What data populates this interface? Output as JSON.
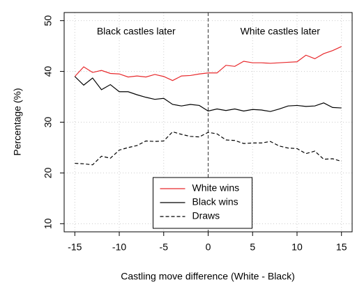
{
  "chart_data": {
    "type": "line",
    "x_label": "Castling move difference (White - Black)",
    "y_label": "Percentage (%)",
    "x": [
      -15,
      -14,
      -13,
      -12,
      -11,
      -10,
      -9,
      -8,
      -7,
      -6,
      -5,
      -4,
      -3,
      -2,
      -1,
      0,
      1,
      2,
      3,
      4,
      5,
      6,
      7,
      8,
      9,
      10,
      11,
      12,
      13,
      14,
      15
    ],
    "series": [
      {
        "name": "White wins",
        "color": "#e8282b",
        "linestyle": "solid",
        "values": [
          39.0,
          40.9,
          39.8,
          40.2,
          39.6,
          39.5,
          38.9,
          39.1,
          38.9,
          39.4,
          39.0,
          38.2,
          39.1,
          39.2,
          39.5,
          39.7,
          39.7,
          41.2,
          41.0,
          42.0,
          41.7,
          41.7,
          41.6,
          41.7,
          41.8,
          41.9,
          43.2,
          42.5,
          43.5,
          44.1,
          44.9
        ]
      },
      {
        "name": "Black wins",
        "color": "#000000",
        "linestyle": "solid",
        "values": [
          39.0,
          37.3,
          38.7,
          36.4,
          37.4,
          36.0,
          36.0,
          35.4,
          34.9,
          34.5,
          34.7,
          33.5,
          33.2,
          33.5,
          33.3,
          32.2,
          32.6,
          32.3,
          32.6,
          32.2,
          32.5,
          32.4,
          32.1,
          32.6,
          33.2,
          33.3,
          33.1,
          33.2,
          33.8,
          32.9,
          32.8
        ]
      },
      {
        "name": "Draws",
        "color": "#000000",
        "linestyle": "dashed",
        "values": [
          21.9,
          21.8,
          21.6,
          23.3,
          22.9,
          24.5,
          25.0,
          25.4,
          26.3,
          26.2,
          26.3,
          28.1,
          27.6,
          27.2,
          27.1,
          28.0,
          27.7,
          26.5,
          26.4,
          25.8,
          25.9,
          25.9,
          26.2,
          25.3,
          24.9,
          24.8,
          23.8,
          24.3,
          22.7,
          22.8,
          22.3
        ]
      }
    ],
    "xlim": [
      -16.2,
      16.2
    ],
    "xticks": [
      -15,
      -10,
      -5,
      0,
      5,
      10,
      15
    ],
    "ylim": [
      8.4,
      51.6
    ],
    "yticks": [
      10,
      20,
      30,
      40,
      50
    ],
    "grid": true,
    "vline": 0,
    "annotations": [
      "Black castles later",
      "White castles later"
    ],
    "legend": "bottom"
  }
}
